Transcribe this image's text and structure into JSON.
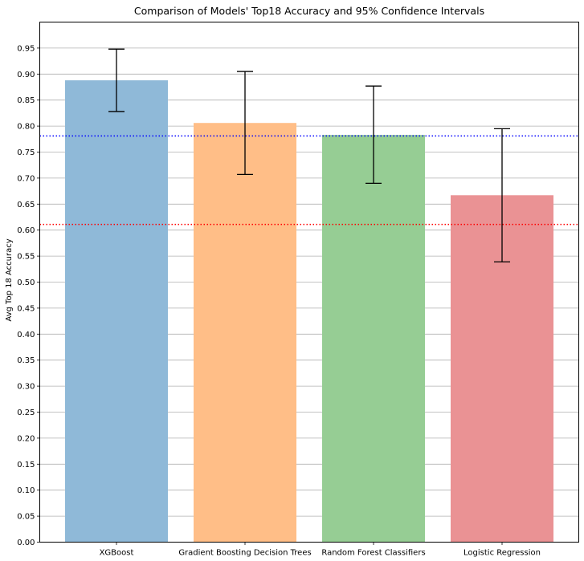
{
  "chart_data": {
    "type": "bar",
    "title": "Comparison of Models' Top18 Accuracy and 95% Confidence Intervals",
    "xlabel": "",
    "ylabel": "Avg Top 18 Accuracy",
    "categories": [
      "XGBoost",
      "Gradient Boosting Decision Trees",
      "Random Forest Classifiers",
      "Logistic Regression"
    ],
    "values": [
      0.888,
      0.806,
      0.783,
      0.667
    ],
    "ci_lower": [
      0.828,
      0.707,
      0.69,
      0.539
    ],
    "ci_upper": [
      0.948,
      0.905,
      0.877,
      0.795
    ],
    "ylim": [
      0,
      1.0
    ],
    "yticks": [
      0.0,
      0.05,
      0.1,
      0.15,
      0.2,
      0.25,
      0.3,
      0.35,
      0.4,
      0.45,
      0.5,
      0.55,
      0.6,
      0.65,
      0.7,
      0.75,
      0.8,
      0.85,
      0.9,
      0.95
    ],
    "ytick_labels": [
      "0.00",
      "0.05",
      "0.10",
      "0.15",
      "0.20",
      "0.25",
      "0.30",
      "0.35",
      "0.40",
      "0.45",
      "0.50",
      "0.55",
      "0.60",
      "0.65",
      "0.70",
      "0.75",
      "0.80",
      "0.85",
      "0.90",
      "0.95"
    ],
    "bar_colors": [
      "#8fb9d8",
      "#ffbe87",
      "#96cd94",
      "#ea9294"
    ],
    "reference_lines": [
      {
        "value": 0.781,
        "color": "#0000ff",
        "style": "dotted"
      },
      {
        "value": 0.611,
        "color": "#ff0000",
        "style": "dotted"
      }
    ],
    "grid": "horizontal",
    "legend": "none"
  }
}
